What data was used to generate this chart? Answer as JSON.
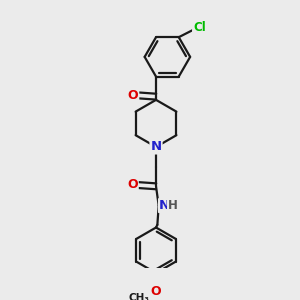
{
  "bg_color": "#ebebeb",
  "bond_color": "#1a1a1a",
  "bond_width": 1.6,
  "figsize": [
    3.0,
    3.0
  ],
  "dpi": 100,
  "colors": {
    "Cl": "#00bb00",
    "O": "#dd0000",
    "N": "#2222cc",
    "C": "#1a1a1a"
  }
}
